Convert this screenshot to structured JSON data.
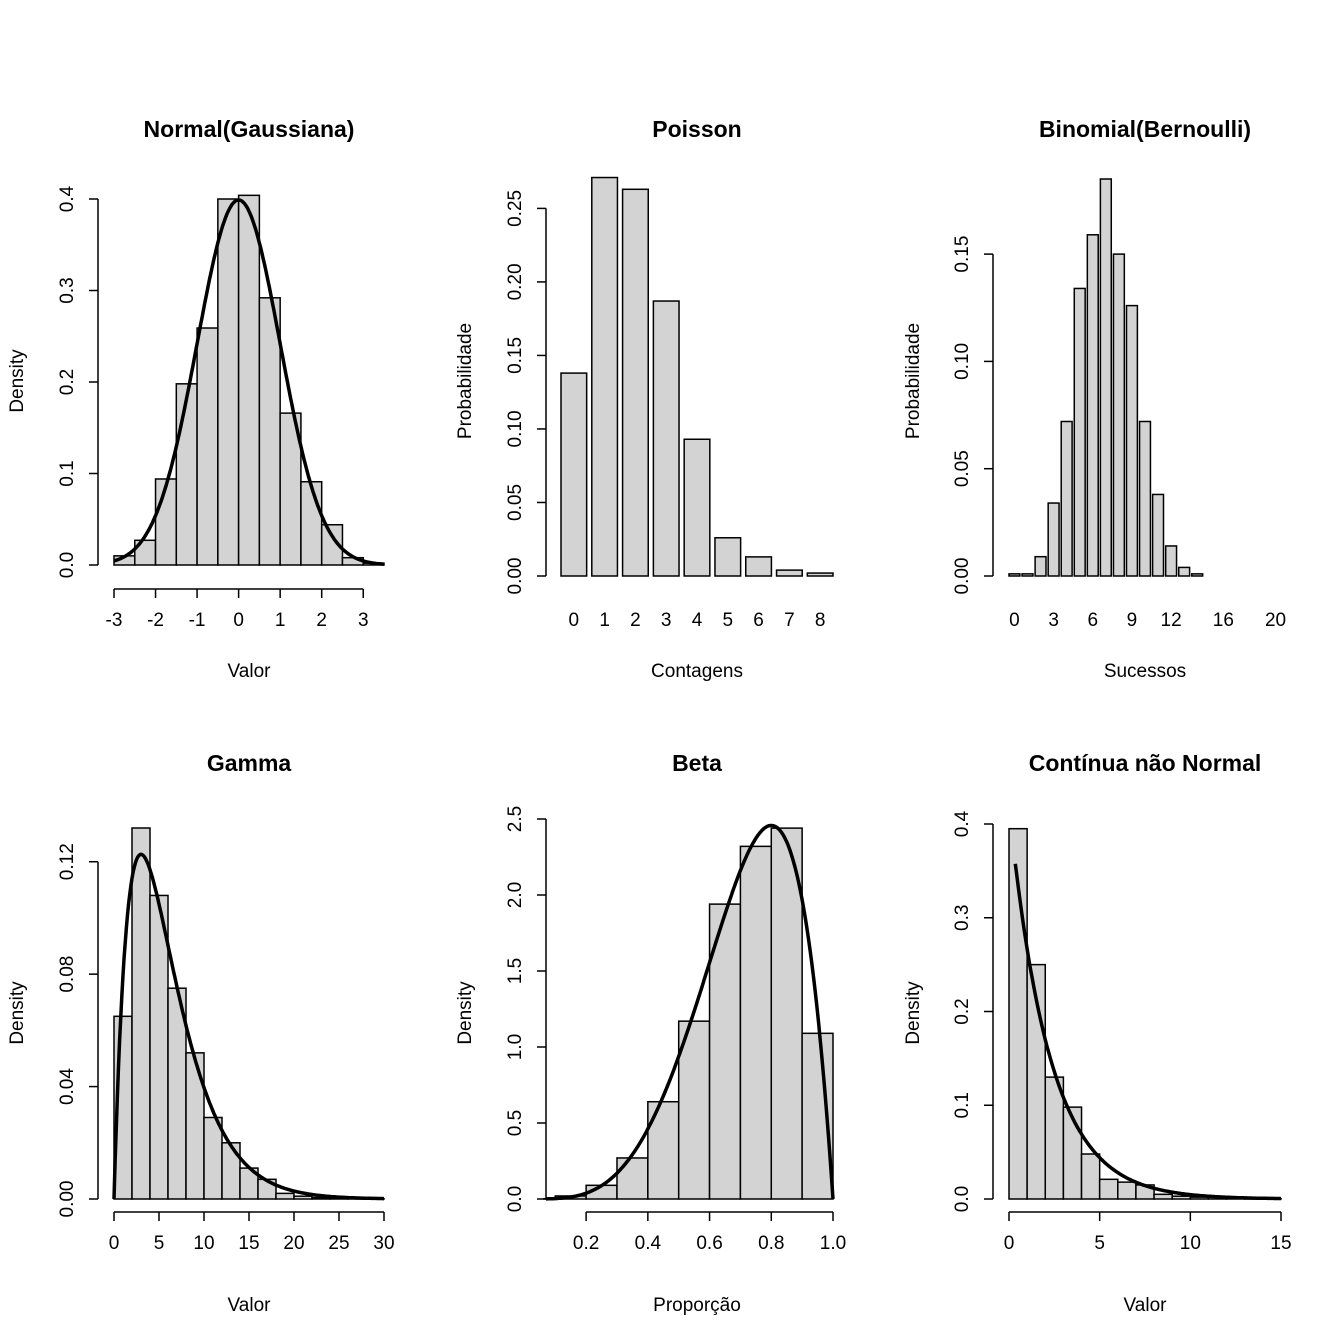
{
  "chart_data": [
    {
      "type": "bar",
      "title": "Normal(Gaussiana)",
      "xlabel": "Valor",
      "ylabel": "Density",
      "bin_edges": [
        -3,
        -2.5,
        -2,
        -1.5,
        -1,
        -0.5,
        0,
        0.5,
        1,
        1.5,
        2,
        2.5,
        3,
        3.5
      ],
      "values": [
        0.01,
        0.027,
        0.094,
        0.198,
        0.259,
        0.4,
        0.404,
        0.292,
        0.166,
        0.091,
        0.044,
        0.008,
        0.002
      ],
      "xlim": [
        -3,
        3.5
      ],
      "ylim": [
        0,
        0.4
      ],
      "xticks": [
        -3,
        -2,
        -1,
        0,
        1,
        2,
        3
      ],
      "xtick_labels": [
        "-3",
        "-2",
        "-1",
        "0",
        "1",
        "2",
        "3"
      ],
      "yticks": [
        0,
        0.1,
        0.2,
        0.3,
        0.4
      ],
      "ytick_labels": [
        "0.0",
        "0.1",
        "0.2",
        "0.3",
        "0.4"
      ],
      "curve": {
        "kind": "normal",
        "mean": 0,
        "sd": 1
      }
    },
    {
      "type": "bar",
      "title": "Poisson",
      "xlabel": "Contagens",
      "ylabel": "Probabilidade",
      "categories": [
        "0",
        "1",
        "2",
        "3",
        "4",
        "5",
        "6",
        "7",
        "8"
      ],
      "values": [
        0.138,
        0.271,
        0.263,
        0.187,
        0.093,
        0.026,
        0.013,
        0.004,
        0.002
      ],
      "ylim": [
        0,
        0.27
      ],
      "yticks": [
        0,
        0.05,
        0.1,
        0.15,
        0.2,
        0.25
      ],
      "ytick_labels": [
        "0.00",
        "0.05",
        "0.10",
        "0.15",
        "0.20",
        "0.25"
      ]
    },
    {
      "type": "bar",
      "title": "Binomial(Bernoulli)",
      "xlabel": "Sucessos",
      "ylabel": "Probabilidade",
      "categories": [
        "0",
        "1",
        "2",
        "3",
        "4",
        "5",
        "6",
        "7",
        "8",
        "9",
        "10",
        "11",
        "12",
        "13",
        "14",
        "15",
        "16",
        "17",
        "18",
        "19",
        "20"
      ],
      "values": [
        0.001,
        0.001,
        0.009,
        0.034,
        0.072,
        0.134,
        0.159,
        0.185,
        0.15,
        0.126,
        0.072,
        0.038,
        0.014,
        0.004,
        0.001,
        0,
        0,
        0,
        0,
        0,
        0
      ],
      "ylim": [
        0,
        0.185
      ],
      "xtick_labels": [
        "0",
        "3",
        "6",
        "9",
        "12",
        "16",
        "20"
      ],
      "yticks": [
        0,
        0.05,
        0.1,
        0.15
      ],
      "ytick_labels": [
        "0.00",
        "0.05",
        "0.10",
        "0.15"
      ]
    },
    {
      "type": "bar",
      "title": "Gamma",
      "xlabel": "Valor",
      "ylabel": "Density",
      "bin_edges": [
        0,
        2,
        4,
        6,
        8,
        10,
        12,
        14,
        16,
        18,
        20,
        22,
        24,
        26,
        28,
        30
      ],
      "values": [
        0.065,
        0.132,
        0.108,
        0.075,
        0.052,
        0.029,
        0.02,
        0.011,
        0.007,
        0.002,
        0.001,
        0.0005,
        0.0003,
        0.0002,
        0.0001
      ],
      "xlim": [
        0,
        30
      ],
      "ylim": [
        0,
        0.132
      ],
      "xticks": [
        0,
        5,
        10,
        15,
        20,
        25,
        30
      ],
      "xtick_labels": [
        "0",
        "5",
        "10",
        "15",
        "20",
        "25",
        "30"
      ],
      "yticks": [
        0,
        0.04,
        0.08,
        0.12
      ],
      "ytick_labels": [
        "0.00",
        "0.04",
        "0.08",
        "0.12"
      ],
      "curve": {
        "kind": "gamma",
        "shape": 2,
        "scale": 3
      }
    },
    {
      "type": "bar",
      "title": "Beta",
      "xlabel": "Proporção",
      "ylabel": "Density",
      "bin_edges": [
        0.0,
        0.1,
        0.2,
        0.3,
        0.4,
        0.5,
        0.6,
        0.7,
        0.8,
        0.9,
        1.0
      ],
      "values": [
        0.002,
        0.02,
        0.09,
        0.27,
        0.64,
        1.17,
        1.94,
        2.32,
        2.44,
        1.09
      ],
      "xlim": [
        0.07,
        1.0
      ],
      "ylim": [
        0,
        2.5
      ],
      "xticks": [
        0.2,
        0.4,
        0.6,
        0.8,
        1.0
      ],
      "xtick_labels": [
        "0.2",
        "0.4",
        "0.6",
        "0.8",
        "1.0"
      ],
      "yticks": [
        0,
        0.5,
        1.0,
        1.5,
        2.0,
        2.5
      ],
      "ytick_labels": [
        "0.0",
        "0.5",
        "1.0",
        "1.5",
        "2.0",
        "2.5"
      ],
      "curve": {
        "kind": "beta",
        "a": 5,
        "b": 2
      }
    },
    {
      "type": "bar",
      "title": "Contínua não Normal",
      "xlabel": "Valor",
      "ylabel": "Density",
      "bin_edges": [
        0,
        1,
        2,
        3,
        4,
        5,
        6,
        7,
        8,
        9,
        10,
        11,
        12,
        13,
        14,
        15
      ],
      "values": [
        0.395,
        0.25,
        0.13,
        0.098,
        0.048,
        0.021,
        0.018,
        0.015,
        0.005,
        0.003,
        0.002,
        0.002,
        0.001,
        0.0005,
        0.0003
      ],
      "xlim": [
        0,
        15
      ],
      "ylim": [
        0,
        0.4
      ],
      "xticks": [
        0,
        5,
        10,
        15
      ],
      "xtick_labels": [
        "0",
        "5",
        "10",
        "15"
      ],
      "yticks": [
        0,
        0.1,
        0.2,
        0.3,
        0.4
      ],
      "ytick_labels": [
        "0.0",
        "0.1",
        "0.2",
        "0.3",
        "0.4"
      ],
      "curve": {
        "kind": "exponential",
        "rate": 0.45
      }
    }
  ]
}
